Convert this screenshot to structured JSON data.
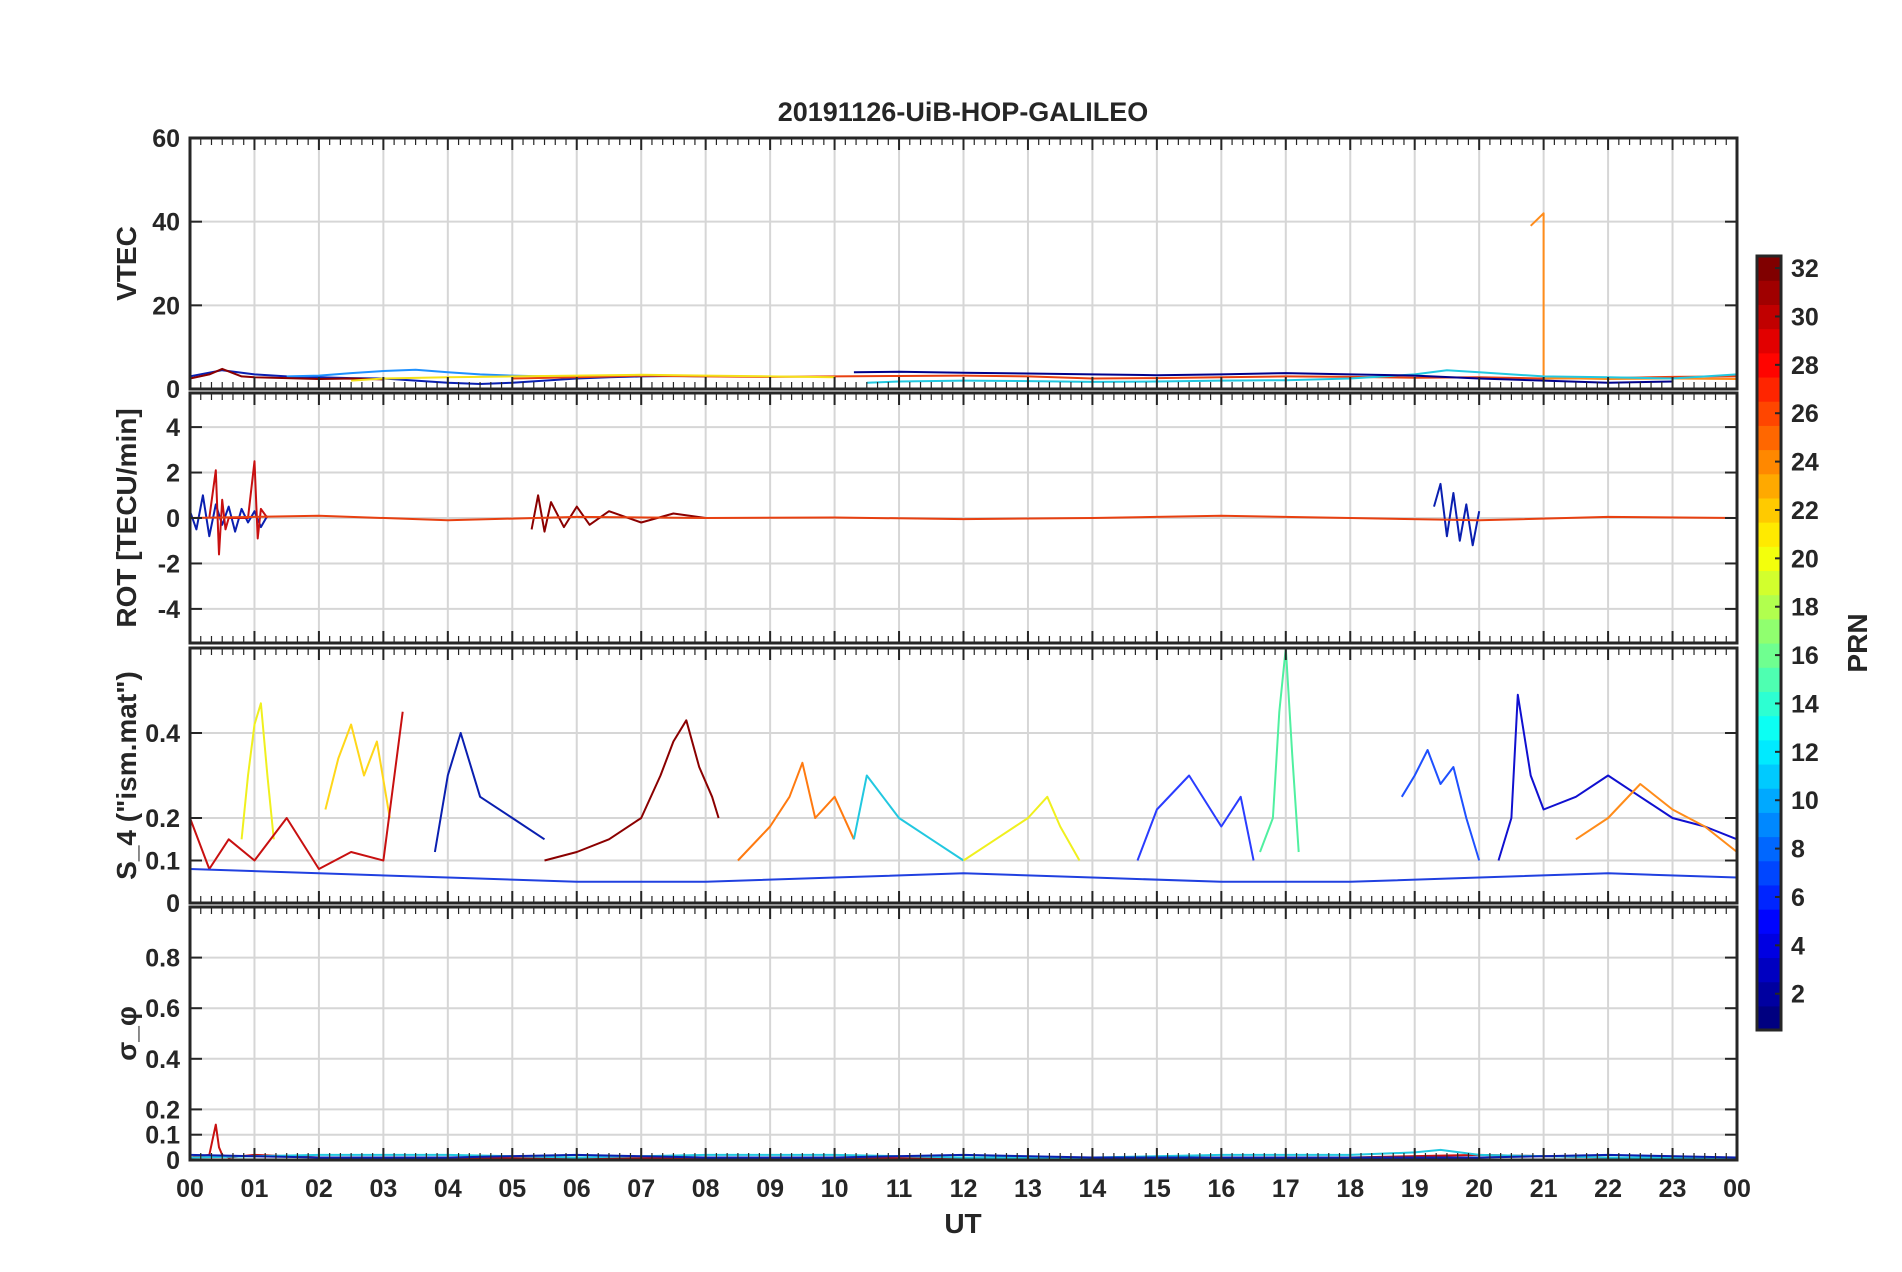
{
  "chart_data": [
    {
      "type": "line",
      "title": "20191126-UiB-HOP-GALILEO",
      "ylabel": "VTEC",
      "xlabel": "",
      "xlim": [
        0,
        24
      ],
      "ylim": [
        0,
        60
      ],
      "yticks": [
        0,
        20,
        40,
        60
      ],
      "grid": true,
      "series": [
        {
          "name": "",
          "color": "#0a1fb0",
          "x": [
            0,
            0.5,
            1,
            1.5,
            2,
            2.5,
            3,
            3.5,
            4,
            4.5,
            5,
            5.5,
            6,
            6.5,
            7,
            7.5,
            8
          ],
          "y": [
            3,
            4.5,
            3.5,
            3,
            2.8,
            2.6,
            2.5,
            2,
            1.5,
            1.2,
            1.5,
            2,
            2.5,
            2.8,
            3,
            3.1,
            3
          ]
        },
        {
          "name": "",
          "color": "#1e90ff",
          "x": [
            1.5,
            2,
            2.5,
            3,
            3.5,
            4,
            4.5,
            5,
            5.5,
            6
          ],
          "y": [
            3,
            3.2,
            3.8,
            4.3,
            4.6,
            4,
            3.5,
            3.2,
            3,
            2.9
          ]
        },
        {
          "name": "",
          "color": "#8b0000",
          "x": [
            0,
            0.3,
            0.5,
            0.8,
            1,
            1.5,
            2,
            2.5,
            3
          ],
          "y": [
            2.5,
            3.5,
            4.8,
            3,
            2.8,
            2.6,
            2.4,
            2.5,
            2.3
          ]
        },
        {
          "name": "",
          "color": "#e84010",
          "x": [
            5,
            6,
            7,
            8,
            9,
            10,
            11,
            12,
            13,
            14,
            15,
            16,
            17,
            18,
            19,
            20,
            21,
            22,
            23,
            24
          ],
          "y": [
            2.5,
            2.8,
            3.2,
            3,
            2.9,
            3,
            3.1,
            3.2,
            3,
            2.5,
            2.6,
            2.8,
            3,
            2.9,
            2.7,
            2.8,
            2.5,
            2.6,
            2.9,
            3
          ]
        },
        {
          "name": "",
          "color": "#ff8c1a",
          "x": [
            20.8,
            21,
            21,
            21.2,
            22,
            23,
            24
          ],
          "y": [
            39,
            42,
            2.5,
            2.6,
            2.4,
            2.5,
            2.4
          ]
        },
        {
          "name": "",
          "color": "#22c8e0",
          "x": [
            10.5,
            11,
            12,
            13,
            14,
            15,
            16,
            17,
            18,
            19,
            19.5,
            20,
            20.5,
            21,
            22,
            23,
            24
          ],
          "y": [
            1.5,
            1.8,
            2,
            1.9,
            1.7,
            1.8,
            2,
            2.1,
            2.5,
            3.5,
            4.5,
            4,
            3.5,
            3,
            2.8,
            2.5,
            3.5
          ]
        },
        {
          "name": "",
          "color": "#00008b",
          "x": [
            10.3,
            11,
            12,
            13,
            14,
            15,
            16,
            17,
            18,
            19,
            20,
            21,
            22,
            23
          ],
          "y": [
            4,
            4.1,
            3.9,
            3.7,
            3.5,
            3.3,
            3.5,
            3.8,
            3.5,
            3.2,
            2.5,
            2,
            1.5,
            1.8
          ]
        },
        {
          "name": "",
          "color": "#f4e21a",
          "x": [
            2.5,
            3,
            4,
            5,
            6,
            7,
            8,
            9,
            10
          ],
          "y": [
            2,
            2.5,
            2.8,
            3,
            3.2,
            3.4,
            3.2,
            3,
            2.8
          ]
        }
      ]
    },
    {
      "type": "line",
      "ylabel": "ROT [TECU/min]",
      "xlabel": "",
      "xlim": [
        0,
        24
      ],
      "ylim": [
        -5.5,
        5.5
      ],
      "yticks": [
        -4,
        -2,
        0,
        2,
        4
      ],
      "grid": true,
      "series": [
        {
          "name": "",
          "color": "#0a1fb0",
          "x": [
            0,
            0.1,
            0.2,
            0.3,
            0.4,
            0.5,
            0.6,
            0.7,
            0.8,
            0.9,
            1,
            1.1,
            1.2
          ],
          "y": [
            0.3,
            -0.5,
            1,
            -0.8,
            0.6,
            -0.3,
            0.5,
            -0.6,
            0.4,
            -0.2,
            0.3,
            -0.4,
            0.1
          ]
        },
        {
          "name": "",
          "color": "#c81010",
          "x": [
            0.3,
            0.4,
            0.45,
            0.5,
            0.55,
            0.6,
            0.9,
            1,
            1.05,
            1.1,
            1.2
          ],
          "y": [
            0,
            2.1,
            -1.6,
            0.8,
            -0.5,
            0,
            0,
            2.5,
            -0.9,
            0.4,
            0
          ]
        },
        {
          "name": "",
          "color": "#8b0000",
          "x": [
            5.3,
            5.4,
            5.5,
            5.6,
            5.8,
            6,
            6.2,
            6.5,
            7,
            7.5,
            8
          ],
          "y": [
            -0.5,
            1,
            -0.6,
            0.7,
            -0.4,
            0.5,
            -0.3,
            0.3,
            -0.2,
            0.2,
            0
          ]
        },
        {
          "name": "",
          "color": "#0a1fb0",
          "x": [
            19.3,
            19.4,
            19.5,
            19.6,
            19.7,
            19.8,
            19.9,
            20
          ],
          "y": [
            0.5,
            1.5,
            -0.8,
            1.1,
            -1,
            0.6,
            -1.2,
            0.3
          ]
        },
        {
          "name": "",
          "color": "#e84010",
          "x": [
            0,
            2,
            4,
            6,
            8,
            10,
            12,
            14,
            16,
            18,
            20,
            22,
            24
          ],
          "y": [
            0,
            0.1,
            -0.1,
            0.05,
            0,
            0.02,
            -0.05,
            0,
            0.1,
            0,
            -0.1,
            0.05,
            0
          ]
        }
      ]
    },
    {
      "type": "line",
      "ylabel": "S_4 (\"ism.mat\")",
      "xlabel": "",
      "xlim": [
        0,
        24
      ],
      "ylim": [
        0,
        0.6
      ],
      "yticks": [
        0,
        0.1,
        0.2,
        0.4
      ],
      "grid": true,
      "series": [
        {
          "name": "",
          "color": "#f0f01e",
          "x": [
            0.8,
            0.9,
            1,
            1.1,
            1.2,
            1.3
          ],
          "y": [
            0.15,
            0.3,
            0.42,
            0.47,
            0.3,
            0.15
          ]
        },
        {
          "name": "",
          "color": "#ffd71a",
          "x": [
            2.1,
            2.3,
            2.5,
            2.7,
            2.9,
            3.1
          ],
          "y": [
            0.22,
            0.34,
            0.42,
            0.3,
            0.38,
            0.2
          ]
        },
        {
          "name": "",
          "color": "#8b0000",
          "x": [
            5.5,
            6,
            6.5,
            7,
            7.3,
            7.5,
            7.7,
            7.9,
            8.1,
            8.2
          ],
          "y": [
            0.1,
            0.12,
            0.15,
            0.2,
            0.3,
            0.38,
            0.43,
            0.32,
            0.25,
            0.2
          ]
        },
        {
          "name": "",
          "color": "#50f0a0",
          "x": [
            16.6,
            16.8,
            16.9,
            17,
            17.1,
            17.2
          ],
          "y": [
            0.12,
            0.2,
            0.45,
            0.6,
            0.35,
            0.12
          ]
        },
        {
          "name": "",
          "color": "#1010d0",
          "x": [
            20.3,
            20.5,
            20.6,
            20.8,
            21,
            21.5,
            22,
            22.5,
            23,
            23.5,
            24
          ],
          "y": [
            0.1,
            0.2,
            0.49,
            0.3,
            0.22,
            0.25,
            0.3,
            0.25,
            0.2,
            0.18,
            0.15
          ]
        },
        {
          "name": "",
          "color": "#0a1fb0",
          "x": [
            3.8,
            4,
            4.2,
            4.5,
            5,
            5.5
          ],
          "y": [
            0.12,
            0.3,
            0.4,
            0.25,
            0.2,
            0.15
          ]
        },
        {
          "name": "",
          "color": "#ff7a10",
          "x": [
            8.5,
            9,
            9.3,
            9.5,
            9.7,
            10,
            10.3
          ],
          "y": [
            0.1,
            0.18,
            0.25,
            0.33,
            0.2,
            0.25,
            0.15
          ]
        },
        {
          "name": "",
          "color": "#22c8e0",
          "x": [
            10.3,
            10.5,
            11,
            11.5,
            12
          ],
          "y": [
            0.15,
            0.3,
            0.2,
            0.15,
            0.1
          ]
        },
        {
          "name": "",
          "color": "#c81010",
          "x": [
            0,
            0.3,
            0.6,
            1,
            1.5,
            2,
            2.5,
            3,
            3.3
          ],
          "y": [
            0.2,
            0.08,
            0.15,
            0.1,
            0.2,
            0.08,
            0.12,
            0.1,
            0.45
          ]
        },
        {
          "name": "",
          "color": "#2a3cff",
          "x": [
            14.7,
            15,
            15.5,
            16,
            16.3,
            16.5
          ],
          "y": [
            0.1,
            0.22,
            0.3,
            0.18,
            0.25,
            0.1
          ]
        },
        {
          "name": "",
          "color": "#1e50ff",
          "x": [
            18.8,
            19,
            19.2,
            19.4,
            19.6,
            19.8,
            20
          ],
          "y": [
            0.25,
            0.3,
            0.36,
            0.28,
            0.32,
            0.2,
            0.1
          ]
        },
        {
          "name": "",
          "color": "#f0f01e",
          "x": [
            12,
            12.5,
            13,
            13.3,
            13.5,
            13.8
          ],
          "y": [
            0.1,
            0.15,
            0.2,
            0.25,
            0.18,
            0.1
          ]
        },
        {
          "name": "",
          "color": "#2040e0",
          "x": [
            0,
            2,
            4,
            6,
            8,
            10,
            12,
            14,
            16,
            18,
            20,
            22,
            24
          ],
          "y": [
            0.08,
            0.07,
            0.06,
            0.05,
            0.05,
            0.06,
            0.07,
            0.06,
            0.05,
            0.05,
            0.06,
            0.07,
            0.06
          ]
        },
        {
          "name": "",
          "color": "#ff8c1a",
          "x": [
            21.5,
            22,
            22.5,
            23,
            23.5,
            24
          ],
          "y": [
            0.15,
            0.2,
            0.28,
            0.22,
            0.18,
            0.12
          ]
        }
      ]
    },
    {
      "type": "line",
      "ylabel": "σ_φ",
      "xlabel": "UT",
      "xlim": [
        0,
        24
      ],
      "ylim": [
        0,
        1
      ],
      "yticks": [
        0,
        0.1,
        0.2,
        0.4,
        0.6,
        0.8
      ],
      "xticks": [
        "00",
        "01",
        "02",
        "03",
        "04",
        "05",
        "06",
        "07",
        "08",
        "09",
        "10",
        "11",
        "12",
        "13",
        "14",
        "15",
        "16",
        "17",
        "18",
        "19",
        "20",
        "21",
        "22",
        "23",
        "00"
      ],
      "grid": true,
      "series": [
        {
          "name": "",
          "color": "#c81010",
          "x": [
            0,
            0.3,
            0.4,
            0.45,
            0.5,
            0.6,
            1,
            2,
            4,
            6,
            8,
            10,
            12,
            14,
            16,
            18,
            20,
            22,
            24
          ],
          "y": [
            0.01,
            0.02,
            0.14,
            0.05,
            0.02,
            0.01,
            0.02,
            0.01,
            0.01,
            0.01,
            0.01,
            0.01,
            0.01,
            0.01,
            0.01,
            0.01,
            0.02,
            0.01,
            0.01
          ]
        },
        {
          "name": "",
          "color": "#22c8e0",
          "x": [
            0,
            2,
            4,
            6,
            8,
            10,
            12,
            14,
            16,
            18,
            19,
            19.4,
            20,
            22,
            24
          ],
          "y": [
            0.01,
            0.02,
            0.02,
            0.01,
            0.02,
            0.02,
            0.01,
            0.01,
            0.02,
            0.02,
            0.03,
            0.04,
            0.02,
            0.01,
            0.01
          ]
        },
        {
          "name": "",
          "color": "#0a1fb0",
          "x": [
            0,
            2,
            4,
            6,
            8,
            10,
            12,
            14,
            16,
            18,
            20,
            22,
            24
          ],
          "y": [
            0.02,
            0.01,
            0.01,
            0.02,
            0.01,
            0.01,
            0.02,
            0.01,
            0.01,
            0.01,
            0.01,
            0.02,
            0.01
          ]
        }
      ]
    }
  ],
  "colorbar": {
    "label": "PRN",
    "min": 1,
    "max": 32,
    "ticks": [
      2,
      4,
      6,
      8,
      10,
      12,
      14,
      16,
      18,
      20,
      22,
      24,
      26,
      28,
      30,
      32
    ],
    "colormap": "jet"
  }
}
